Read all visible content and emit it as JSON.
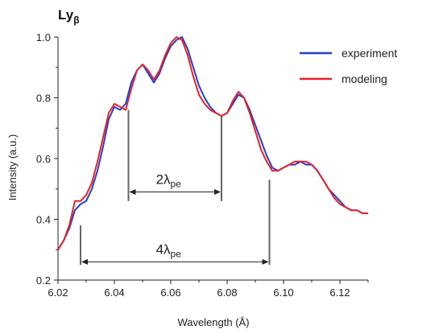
{
  "chart_data": {
    "type": "line",
    "title": "Lyβ",
    "title_base": "Ly",
    "title_subscript": "β",
    "xlabel": "Wavelength (Å)",
    "ylabel": "Intensity (a.u.)",
    "xlim": [
      6.02,
      6.13
    ],
    "ylim": [
      0.2,
      1.0
    ],
    "xticks": [
      "6.02",
      "6.04",
      "6.06",
      "6.08",
      "6.10",
      "6.12"
    ],
    "yticks": [
      "0.2",
      "0.4",
      "0.6",
      "0.8",
      "1.0"
    ],
    "grid": false,
    "legend_position": "top-right",
    "series": [
      {
        "name": "experiment",
        "color": "#1f3fd6",
        "x": [
          6.02,
          6.022,
          6.024,
          6.026,
          6.028,
          6.03,
          6.032,
          6.034,
          6.036,
          6.038,
          6.04,
          6.042,
          6.044,
          6.046,
          6.048,
          6.05,
          6.052,
          6.054,
          6.056,
          6.058,
          6.06,
          6.062,
          6.064,
          6.066,
          6.068,
          6.07,
          6.072,
          6.074,
          6.076,
          6.078,
          6.08,
          6.082,
          6.084,
          6.086,
          6.088,
          6.09,
          6.092,
          6.094,
          6.096,
          6.098,
          6.1,
          6.102,
          6.104,
          6.106,
          6.108,
          6.11,
          6.112,
          6.114,
          6.116,
          6.118,
          6.12,
          6.122,
          6.124,
          6.126,
          6.128,
          6.13
        ],
        "y": [
          0.3,
          0.33,
          0.37,
          0.43,
          0.45,
          0.46,
          0.5,
          0.56,
          0.64,
          0.73,
          0.77,
          0.76,
          0.78,
          0.85,
          0.89,
          0.91,
          0.88,
          0.85,
          0.88,
          0.93,
          0.97,
          0.99,
          1.0,
          0.96,
          0.9,
          0.84,
          0.8,
          0.77,
          0.75,
          0.74,
          0.75,
          0.78,
          0.81,
          0.8,
          0.76,
          0.71,
          0.66,
          0.61,
          0.57,
          0.56,
          0.57,
          0.58,
          0.58,
          0.59,
          0.58,
          0.58,
          0.56,
          0.53,
          0.5,
          0.48,
          0.46,
          0.44,
          0.43,
          0.43,
          0.42,
          0.42
        ]
      },
      {
        "name": "modeling",
        "color": "#e8202a",
        "x": [
          6.02,
          6.022,
          6.024,
          6.026,
          6.028,
          6.03,
          6.032,
          6.034,
          6.036,
          6.038,
          6.04,
          6.042,
          6.044,
          6.046,
          6.048,
          6.05,
          6.052,
          6.054,
          6.056,
          6.058,
          6.06,
          6.062,
          6.064,
          6.066,
          6.068,
          6.07,
          6.072,
          6.074,
          6.076,
          6.078,
          6.08,
          6.082,
          6.084,
          6.086,
          6.088,
          6.09,
          6.092,
          6.094,
          6.096,
          6.098,
          6.1,
          6.102,
          6.104,
          6.106,
          6.108,
          6.11,
          6.112,
          6.114,
          6.116,
          6.118,
          6.12,
          6.122,
          6.124,
          6.126,
          6.128,
          6.13
        ],
        "y": [
          0.3,
          0.33,
          0.38,
          0.46,
          0.46,
          0.48,
          0.52,
          0.59,
          0.67,
          0.75,
          0.78,
          0.77,
          0.76,
          0.83,
          0.89,
          0.91,
          0.89,
          0.86,
          0.89,
          0.94,
          0.98,
          1.0,
          0.99,
          0.94,
          0.87,
          0.81,
          0.78,
          0.76,
          0.75,
          0.74,
          0.75,
          0.79,
          0.82,
          0.8,
          0.75,
          0.69,
          0.63,
          0.59,
          0.56,
          0.56,
          0.57,
          0.58,
          0.59,
          0.59,
          0.59,
          0.58,
          0.56,
          0.53,
          0.5,
          0.47,
          0.45,
          0.44,
          0.43,
          0.43,
          0.42,
          0.42
        ]
      }
    ],
    "annotations": [
      {
        "label_base": "2λ",
        "label_subscript": "pe",
        "x_left": 6.045,
        "x_right": 6.078,
        "arrow_y": 0.49,
        "left_bar_top": 0.76,
        "right_bar_top": 0.74,
        "bar_bottom": 0.46
      },
      {
        "label_base": "4λ",
        "label_subscript": "pe",
        "x_left": 6.028,
        "x_right": 6.095,
        "arrow_y": 0.26,
        "left_bar_top": 0.38,
        "right_bar_top": 0.53,
        "bar_bottom": 0.25
      }
    ]
  }
}
